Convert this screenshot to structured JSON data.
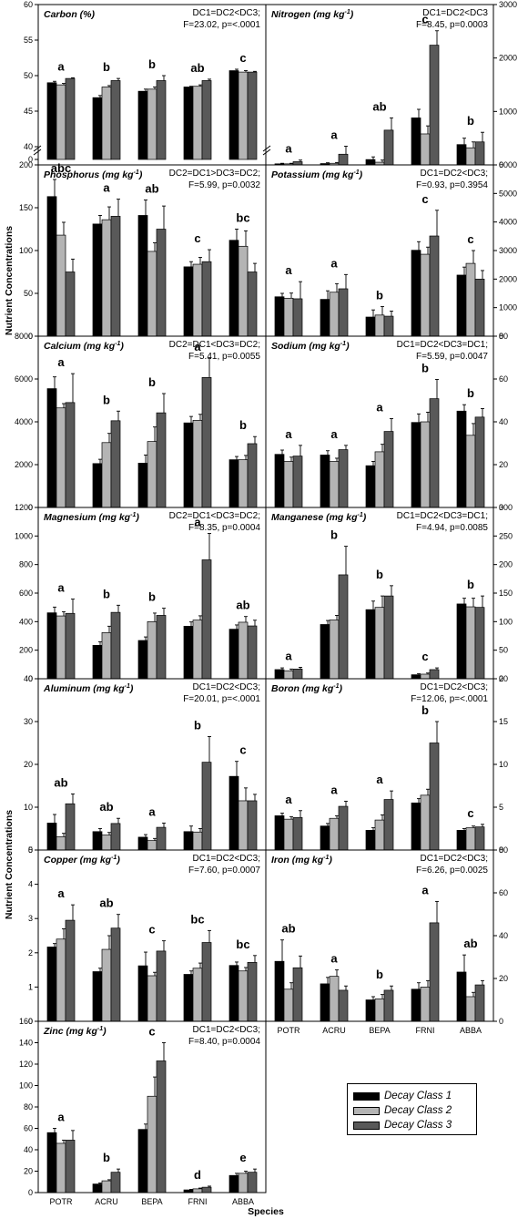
{
  "page": {
    "y_axis_label": "Nutrient Concentrations",
    "x_axis_label": "Species"
  },
  "legend": {
    "items": [
      {
        "label": "Decay Class 1",
        "color": "#000000"
      },
      {
        "label": "Decay Class 2",
        "color": "#b4b4b4"
      },
      {
        "label": "Decay Class 3",
        "color": "#595959"
      }
    ]
  },
  "chart_data": [
    {
      "type": "bar",
      "title": "Carbon",
      "unit": "(%)",
      "stat_line1": "DC1=DC2<DC3;",
      "stat_line2": "F=23.02, p=<.0001",
      "axis": "left",
      "ylim": [
        40,
        60
      ],
      "yticks": [
        "40",
        "45",
        "50",
        "55",
        "60"
      ],
      "extra_tick": "0",
      "axis_break": true,
      "categories": [
        "POTR",
        "ACRU",
        "BEPA",
        "FRNI",
        "ABBA"
      ],
      "letters": [
        "a",
        "b",
        "b",
        "ab",
        "c"
      ],
      "series": [
        {
          "name": "Decay Class 1",
          "values": [
            49.0,
            46.9,
            47.8,
            48.4,
            50.7
          ],
          "errors": [
            0.2,
            0.3,
            0.3,
            0.1,
            0.2
          ]
        },
        {
          "name": "Decay Class 2",
          "values": [
            48.7,
            48.4,
            48.1,
            48.5,
            50.5
          ],
          "errors": [
            0.2,
            0.2,
            0.3,
            0.2,
            0.2
          ]
        },
        {
          "name": "Decay Class 3",
          "values": [
            49.6,
            49.3,
            49.3,
            49.3,
            50.5
          ],
          "errors": [
            0.1,
            0.3,
            0.7,
            0.2,
            0.1
          ]
        }
      ]
    },
    {
      "type": "bar",
      "title": "Nitrogen",
      "unit": "(mg kg",
      "unit_sup": "-1",
      "unit_end": ")",
      "stat_line1": "DC1=DC2<DC3",
      "stat_line2": "F=8.45, p=0.0003",
      "axis": "right",
      "ylim": [
        0,
        3000
      ],
      "yticks": [
        "0",
        "1000",
        "2000",
        "3000"
      ],
      "categories": [
        "POTR",
        "ACRU",
        "BEPA",
        "FRNI",
        "ABBA"
      ],
      "letters": [
        "a",
        "a",
        "ab",
        "c",
        "b"
      ],
      "series": [
        {
          "name": "Decay Class 1",
          "values": [
            20,
            25,
            100,
            880,
            380
          ],
          "errors": [
            10,
            15,
            50,
            160,
            120
          ]
        },
        {
          "name": "Decay Class 2",
          "values": [
            20,
            30,
            50,
            580,
            320
          ],
          "errors": [
            10,
            15,
            40,
            150,
            110
          ]
        },
        {
          "name": "Decay Class 3",
          "values": [
            60,
            200,
            650,
            2240,
            430
          ],
          "errors": [
            30,
            150,
            230,
            270,
            180
          ]
        }
      ]
    },
    {
      "type": "bar",
      "title": "Phosphorus",
      "unit": "(mg kg",
      "unit_sup": "-1",
      "unit_end": ")",
      "stat_line1": "DC2=DC1>DC3=DC2;",
      "stat_line2": "F=5.99, p=0.0032",
      "axis": "left",
      "ylim": [
        0,
        200
      ],
      "yticks": [
        "0",
        "50",
        "100",
        "150",
        "200"
      ],
      "categories": [
        "POTR",
        "ACRU",
        "BEPA",
        "FRNI",
        "ABBA"
      ],
      "letters": [
        "abc",
        "a",
        "ab",
        "c",
        "bc"
      ],
      "series": [
        {
          "name": "Decay Class 1",
          "values": [
            163,
            131,
            141,
            81,
            112
          ],
          "errors": [
            20,
            10,
            18,
            6,
            13
          ]
        },
        {
          "name": "Decay Class 2",
          "values": [
            118,
            136,
            99,
            84,
            105
          ],
          "errors": [
            15,
            15,
            10,
            8,
            18
          ]
        },
        {
          "name": "Decay Class 3",
          "values": [
            75,
            140,
            125,
            87,
            75
          ],
          "errors": [
            15,
            20,
            27,
            14,
            10
          ]
        }
      ]
    },
    {
      "type": "bar",
      "title": "Potassium",
      "unit": "(mg kg",
      "unit_sup": "-1",
      "unit_end": ")",
      "stat_line1": "DC1=DC2<DC3;",
      "stat_line2": "F=0.93, p=0.3954",
      "axis": "right",
      "ylim": [
        0,
        6000
      ],
      "yticks": [
        "0",
        "1000",
        "2000",
        "3000",
        "4000",
        "5000",
        "6000"
      ],
      "categories": [
        "POTR",
        "ACRU",
        "BEPA",
        "FRNI",
        "ABBA"
      ],
      "letters": [
        "a",
        "a",
        "b",
        "c",
        "c"
      ],
      "series": [
        {
          "name": "Decay Class 1",
          "values": [
            1380,
            1290,
            670,
            3010,
            2140
          ],
          "errors": [
            120,
            300,
            250,
            300,
            280
          ]
        },
        {
          "name": "Decay Class 2",
          "values": [
            1330,
            1540,
            740,
            2870,
            2550
          ],
          "errors": [
            180,
            300,
            300,
            250,
            450
          ]
        },
        {
          "name": "Decay Class 3",
          "values": [
            1310,
            1660,
            700,
            3510,
            2000
          ],
          "errors": [
            600,
            500,
            180,
            900,
            300
          ]
        }
      ]
    },
    {
      "type": "bar",
      "title": "Calcium",
      "unit": "(mg kg",
      "unit_sup": "-1",
      "unit_end": ")",
      "stat_line1": "DC2=DC1<DC3=DC2;",
      "stat_line2": "F=5.41, p=0.0055",
      "axis": "left",
      "ylim": [
        0,
        8000
      ],
      "yticks": [
        "0",
        "2000",
        "4000",
        "6000",
        "8000"
      ],
      "categories": [
        "POTR",
        "ACRU",
        "BEPA",
        "FRNI",
        "ABBA"
      ],
      "letters": [
        "a",
        "b",
        "b",
        "a",
        "b"
      ],
      "series": [
        {
          "name": "Decay Class 1",
          "values": [
            5550,
            2050,
            2070,
            3950,
            2230
          ],
          "errors": [
            550,
            200,
            380,
            300,
            150
          ]
        },
        {
          "name": "Decay Class 2",
          "values": [
            4650,
            3030,
            3080,
            4070,
            2230
          ],
          "errors": [
            200,
            430,
            680,
            280,
            200
          ]
        },
        {
          "name": "Decay Class 3",
          "values": [
            4900,
            4050,
            4420,
            6070,
            2980
          ],
          "errors": [
            1350,
            450,
            900,
            900,
            330
          ]
        }
      ]
    },
    {
      "type": "bar",
      "title": "Sodium",
      "unit": "(mg kg",
      "unit_sup": "-1",
      "unit_end": ")",
      "stat_line1": "DC1=DC2<DC3=DC1;",
      "stat_line2": "F=5.59, p=0.0047",
      "axis": "right",
      "ylim": [
        0,
        80
      ],
      "yticks": [
        "0",
        "20",
        "40",
        "60",
        "80"
      ],
      "categories": [
        "POTR",
        "ACRU",
        "BEPA",
        "FRNI",
        "ABBA"
      ],
      "letters": [
        "a",
        "a",
        "a",
        "b",
        "b"
      ],
      "series": [
        {
          "name": "Decay Class 1",
          "values": [
            24.8,
            24.5,
            19.5,
            39.7,
            45.0
          ],
          "errors": [
            2,
            2,
            2,
            4,
            3
          ]
        },
        {
          "name": "Decay Class 2",
          "values": [
            21.5,
            21.5,
            26.0,
            40.0,
            33.7
          ],
          "errors": [
            2,
            1.5,
            3.5,
            4.5,
            5.5
          ]
        },
        {
          "name": "Decay Class 3",
          "values": [
            24.0,
            27.0,
            35.5,
            50.8,
            42.2
          ],
          "errors": [
            5,
            2,
            6,
            9,
            4
          ]
        }
      ]
    },
    {
      "type": "bar",
      "title": "Magnesium",
      "unit": "(mg kg",
      "unit_sup": "-1",
      "unit_end": ")",
      "stat_line1": "DC2=DC1<DC3=DC2;",
      "stat_line2": "F=8.35, p=0.0004",
      "axis": "left",
      "ylim": [
        0,
        1200
      ],
      "yticks": [
        "0",
        "200",
        "400",
        "600",
        "800",
        "1000",
        "1200"
      ],
      "categories": [
        "POTR",
        "ACRU",
        "BEPA",
        "FRNI",
        "ABBA"
      ],
      "letters": [
        "a",
        "b",
        "b",
        "a",
        "ab"
      ],
      "series": [
        {
          "name": "Decay Class 1",
          "values": [
            462,
            234,
            268,
            368,
            347
          ],
          "errors": [
            40,
            25,
            25,
            30,
            30
          ]
        },
        {
          "name": "Decay Class 2",
          "values": [
            440,
            323,
            400,
            411,
            396
          ],
          "errors": [
            30,
            45,
            60,
            30,
            40
          ]
        },
        {
          "name": "Decay Class 3",
          "values": [
            458,
            465,
            444,
            833,
            370
          ],
          "errors": [
            100,
            50,
            50,
            185,
            40
          ]
        }
      ]
    },
    {
      "type": "bar",
      "title": "Manganese",
      "unit": "(mg kg",
      "unit_sup": "-1",
      "unit_end": ")",
      "stat_line1": "DC1=DC2<DC3=DC1;",
      "stat_line2": "F=4.94, p=0.0085",
      "axis": "right",
      "ylim": [
        0,
        300
      ],
      "yticks": [
        "0",
        "50",
        "100",
        "150",
        "200",
        "250",
        "300"
      ],
      "categories": [
        "POTR",
        "ACRU",
        "BEPA",
        "FRNI",
        "ABBA"
      ],
      "letters": [
        "a",
        "b",
        "b",
        "c",
        "b"
      ],
      "series": [
        {
          "name": "Decay Class 1",
          "values": [
            16,
            95,
            121,
            7,
            131
          ],
          "errors": [
            3,
            7,
            15,
            2,
            10
          ]
        },
        {
          "name": "Decay Class 2",
          "values": [
            14,
            103,
            125,
            8,
            126
          ],
          "errors": [
            3,
            8,
            20,
            2,
            15
          ]
        },
        {
          "name": "Decay Class 3",
          "values": [
            17,
            182,
            145,
            16,
            125
          ],
          "errors": [
            3,
            50,
            18,
            3,
            20
          ]
        }
      ]
    },
    {
      "type": "bar",
      "title": "Aluminum",
      "unit": "(mg kg",
      "unit_sup": "-1",
      "unit_end": ")",
      "stat_line1": "DC1=DC2<DC3;",
      "stat_line2": "F=20.01, p=<.0001",
      "axis": "left",
      "ylim": [
        0,
        40
      ],
      "yticks": [
        "0",
        "10",
        "20",
        "30",
        "40"
      ],
      "categories": [
        "POTR",
        "ACRU",
        "BEPA",
        "FRNI",
        "ABBA"
      ],
      "letters": [
        "ab",
        "ab",
        "a",
        "b",
        "c"
      ],
      "series": [
        {
          "name": "Decay Class 1",
          "values": [
            6.3,
            4.3,
            3.0,
            4.3,
            17.2
          ],
          "errors": [
            2,
            0.7,
            0.6,
            1.3,
            3.5
          ]
        },
        {
          "name": "Decay Class 2",
          "values": [
            3.1,
            3.5,
            2.2,
            4.2,
            11.5
          ],
          "errors": [
            0.8,
            0.6,
            0.5,
            0.8,
            3
          ]
        },
        {
          "name": "Decay Class 3",
          "values": [
            10.8,
            6.2,
            5.3,
            20.5,
            11.5
          ],
          "errors": [
            2.3,
            1.2,
            1.0,
            6.0,
            1.5
          ]
        }
      ]
    },
    {
      "type": "bar",
      "title": "Boron",
      "unit": "(mg kg",
      "unit_sup": "-1",
      "unit_end": ")",
      "stat_line1": "DC1=DC2<DC3;",
      "stat_line2": "F=12.06, p=<.0001",
      "axis": "right",
      "ylim": [
        0,
        20
      ],
      "yticks": [
        "0",
        "5",
        "10",
        "15",
        "20"
      ],
      "categories": [
        "POTR",
        "ACRU",
        "BEPA",
        "FRNI",
        "ABBA"
      ],
      "letters": [
        "a",
        "a",
        "a",
        "b",
        "c"
      ],
      "series": [
        {
          "name": "Decay Class 1",
          "values": [
            4.0,
            2.8,
            2.3,
            5.5,
            2.3
          ],
          "errors": [
            0.3,
            0.3,
            0.3,
            0.5,
            0.2
          ]
        },
        {
          "name": "Decay Class 2",
          "values": [
            3.6,
            3.7,
            3.5,
            6.4,
            2.6
          ],
          "errors": [
            0.3,
            0.3,
            0.6,
            0.7,
            0.2
          ]
        },
        {
          "name": "Decay Class 3",
          "values": [
            3.8,
            5.1,
            5.9,
            12.5,
            2.7
          ],
          "errors": [
            0.8,
            0.6,
            1.0,
            2.5,
            0.3
          ]
        }
      ]
    },
    {
      "type": "bar",
      "title": "Copper",
      "unit": "(mg kg",
      "unit_sup": "-1",
      "unit_end": ")",
      "stat_line1": "DC1=DC2<DC3;",
      "stat_line2": "F=7.60, p=0.0007",
      "axis": "left",
      "ylim": [
        0,
        5
      ],
      "yticks": [
        "0",
        "1",
        "2",
        "3",
        "4",
        "5"
      ],
      "categories": [
        "POTR",
        "ACRU",
        "BEPA",
        "FRNI",
        "ABBA"
      ],
      "letters": [
        "a",
        "ab",
        "c",
        "bc",
        "bc"
      ],
      "series": [
        {
          "name": "Decay Class 1",
          "values": [
            2.17,
            1.45,
            1.62,
            1.37,
            1.63
          ],
          "errors": [
            0.1,
            0.1,
            0.4,
            0.1,
            0.1
          ]
        },
        {
          "name": "Decay Class 2",
          "values": [
            2.4,
            2.1,
            1.33,
            1.55,
            1.47
          ],
          "errors": [
            0.3,
            0.4,
            0.1,
            0.15,
            0.1
          ]
        },
        {
          "name": "Decay Class 3",
          "values": [
            2.95,
            2.72,
            2.05,
            2.3,
            1.72
          ],
          "errors": [
            0.45,
            0.4,
            0.3,
            0.35,
            0.2
          ]
        }
      ]
    },
    {
      "type": "bar",
      "title": "Iron",
      "unit": "(mg kg",
      "unit_sup": "-1",
      "unit_end": ")",
      "stat_line1": "DC1=DC2<DC3;",
      "stat_line2": "F=6.26, p=0.0025",
      "axis": "right",
      "ylim": [
        0,
        80
      ],
      "yticks": [
        "0",
        "20",
        "40",
        "60",
        "80"
      ],
      "categories": [
        "POTR",
        "ACRU",
        "BEPA",
        "FRNI",
        "ABBA"
      ],
      "letters": [
        "ab",
        "a",
        "b",
        "a",
        "ab"
      ],
      "series": [
        {
          "name": "Decay Class 1",
          "values": [
            28,
            17.5,
            10,
            15,
            23
          ],
          "errors": [
            10,
            3,
            1.5,
            3,
            8
          ]
        },
        {
          "name": "Decay Class 2",
          "values": [
            15,
            21,
            10.5,
            16,
            11.5
          ],
          "errors": [
            3,
            3,
            2,
            3,
            2
          ]
        },
        {
          "name": "Decay Class 3",
          "values": [
            25,
            14.5,
            14.5,
            46,
            17
          ],
          "errors": [
            5.5,
            2,
            2,
            10,
            2
          ]
        }
      ]
    },
    {
      "type": "bar",
      "title": "Zinc",
      "unit": "(mg kg",
      "unit_sup": "-1",
      "unit_end": ")",
      "stat_line1": "DC1=DC2<DC3;",
      "stat_line2": "F=8.40, p=0.0004",
      "axis": "left",
      "ylim": [
        0,
        160
      ],
      "yticks": [
        "0",
        "20",
        "40",
        "60",
        "80",
        "100",
        "120",
        "140",
        "160"
      ],
      "categories": [
        "POTR",
        "ACRU",
        "BEPA",
        "FRNI",
        "ABBA"
      ],
      "letters": [
        "a",
        "b",
        "c",
        "d",
        "e"
      ],
      "series": [
        {
          "name": "Decay Class 1",
          "values": [
            56,
            8,
            59,
            2.5,
            16
          ],
          "errors": [
            4,
            1,
            5,
            0.5,
            2
          ]
        },
        {
          "name": "Decay Class 2",
          "values": [
            46,
            11,
            90,
            3.5,
            18
          ],
          "errors": [
            3,
            1,
            18,
            0.7,
            2
          ]
        },
        {
          "name": "Decay Class 3",
          "values": [
            49,
            19,
            123,
            5,
            19
          ],
          "errors": [
            9,
            3,
            17,
            1,
            3
          ]
        }
      ]
    }
  ]
}
